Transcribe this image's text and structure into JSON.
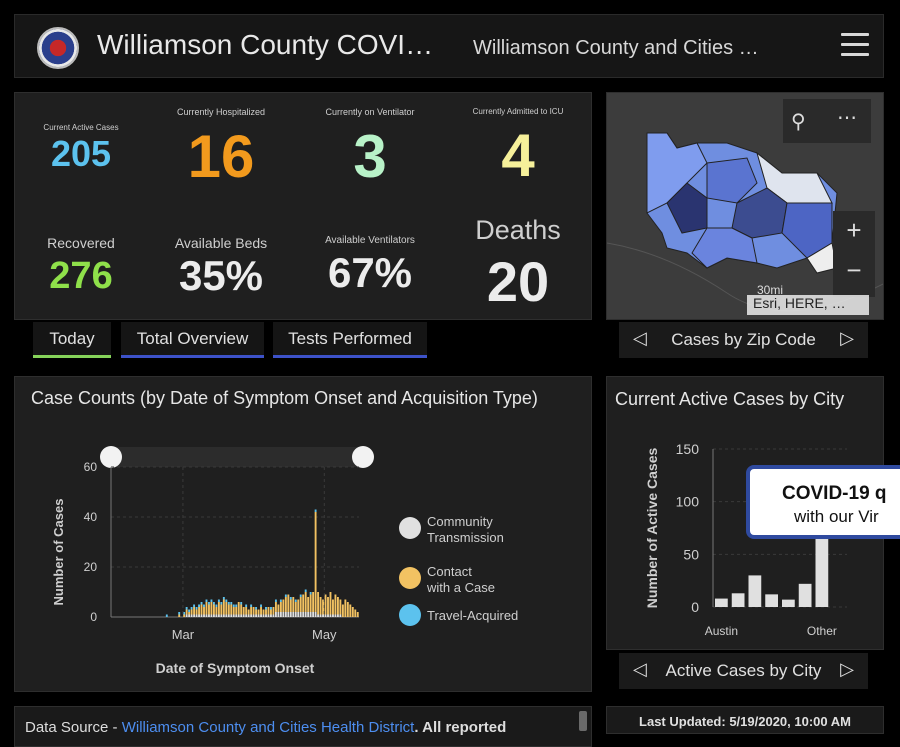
{
  "header": {
    "title": "Williamson County COVI…",
    "subtitle": "Williamson County and Cities …"
  },
  "stats": {
    "active": {
      "label": "Current Active Cases",
      "value": "205",
      "color": "#5cc2ee"
    },
    "hospitalized": {
      "label": "Currently Hospitalized",
      "value": "16",
      "color": "#f29a1d"
    },
    "ventilator": {
      "label": "Currently on Ventilator",
      "value": "3",
      "color": "#b8f2c8"
    },
    "icu": {
      "label": "Currently Admitted to ICU",
      "value": "4",
      "color": "#f6f09a"
    },
    "recovered": {
      "label": "Recovered",
      "value": "276",
      "color": "#8fe04a"
    },
    "beds": {
      "label": "Available Beds",
      "value": "35%",
      "color": "#ececec"
    },
    "ventilators": {
      "label": "Available Ventilators",
      "value": "67%",
      "color": "#ececec"
    },
    "deaths": {
      "label": "Deaths",
      "value": "20",
      "color": "#ececec"
    }
  },
  "tabs": [
    "Today",
    "Total Overview",
    "Tests Performed"
  ],
  "map": {
    "attribution": "Esri, HERE, …",
    "scale_label": "30mi",
    "zoom_in": "+",
    "zoom_out": "−",
    "nav_label": "Cases by Zip Code"
  },
  "cases_chart": {
    "title": "Case Counts (by Date of Symptom Onset and Acquisition Type)"
  },
  "city_chart": {
    "title": "Current Active Cases by City",
    "nav_label": "Active Cases by City"
  },
  "popup": {
    "line1": "COVID-19 q",
    "line2": "with our Vir"
  },
  "footer": {
    "source_prefix": "Data Source - ",
    "source_link": "Williamson County and Cities Health District",
    "source_suffix": ". All reported",
    "updated": "Last Updated: 5/19/2020, 10:00 AM"
  },
  "chart_data": [
    {
      "type": "bar",
      "stacked": true,
      "title": "",
      "xlabel": "Date of Symptom Onset",
      "ylabel": "Number of Cases",
      "ylim": [
        0,
        60
      ],
      "yticks": [
        0,
        20,
        40,
        60
      ],
      "xtick_labels": [
        "Mar",
        "May"
      ],
      "grid": true,
      "legend_position": "right",
      "categories_note": "daily bins, early Feb to mid May 2020",
      "series": [
        {
          "name": "Community Transmission",
          "color": "#e0e0e0",
          "values": [
            0,
            0,
            0,
            0,
            0,
            0,
            0,
            0,
            0,
            0,
            0,
            0,
            0,
            0,
            0,
            0,
            0,
            0,
            0,
            0,
            0,
            0,
            0,
            0,
            0,
            0,
            0,
            0,
            0,
            0,
            1,
            1,
            1,
            1,
            1,
            1,
            1,
            1,
            1,
            1,
            1,
            1,
            1,
            1,
            1,
            1,
            1,
            1,
            1,
            1,
            1,
            1,
            1,
            1,
            1,
            1,
            1,
            1,
            1,
            1,
            1,
            1,
            1,
            1,
            1,
            1,
            2,
            2,
            2,
            2,
            2,
            2,
            2,
            2,
            2,
            2,
            2,
            2,
            2,
            2,
            2,
            2,
            2,
            1,
            1,
            1,
            1,
            1,
            1,
            1,
            1,
            1,
            1,
            0,
            0,
            0,
            0,
            0,
            0,
            0
          ]
        },
        {
          "name": "Contact with a Case",
          "color": "#f2c262",
          "values": [
            0,
            0,
            0,
            0,
            0,
            0,
            0,
            0,
            0,
            0,
            0,
            0,
            0,
            0,
            0,
            0,
            0,
            0,
            0,
            0,
            0,
            0,
            0,
            0,
            0,
            0,
            0,
            1,
            0,
            1,
            2,
            1,
            2,
            3,
            2,
            3,
            4,
            3,
            5,
            4,
            5,
            4,
            3,
            5,
            4,
            6,
            5,
            4,
            4,
            3,
            3,
            5,
            4,
            3,
            3,
            2,
            3,
            3,
            2,
            2,
            3,
            2,
            2,
            3,
            2,
            3,
            4,
            3,
            4,
            5,
            6,
            7,
            5,
            6,
            4,
            5,
            6,
            7,
            8,
            6,
            7,
            8,
            40,
            9,
            7,
            6,
            8,
            7,
            9,
            6,
            8,
            7,
            6,
            5,
            7,
            6,
            5,
            4,
            3,
            2
          ]
        },
        {
          "name": "Travel-Acquired",
          "color": "#5cc2ee",
          "values": [
            0,
            0,
            0,
            0,
            0,
            0,
            0,
            0,
            0,
            0,
            0,
            0,
            0,
            0,
            0,
            0,
            0,
            0,
            0,
            0,
            0,
            0,
            1,
            0,
            0,
            0,
            0,
            1,
            0,
            1,
            1,
            1,
            1,
            1,
            1,
            1,
            1,
            1,
            1,
            1,
            1,
            1,
            1,
            1,
            1,
            1,
            1,
            1,
            1,
            1,
            1,
            0,
            1,
            0,
            1,
            0,
            1,
            0,
            1,
            0,
            1,
            0,
            1,
            0,
            1,
            0,
            1,
            0,
            1,
            0,
            1,
            0,
            1,
            0,
            1,
            0,
            1,
            0,
            1,
            0,
            1,
            0,
            1,
            0,
            0,
            0,
            0,
            0,
            0,
            0,
            0,
            0,
            0,
            0,
            0,
            0,
            0,
            0,
            0,
            0
          ]
        }
      ]
    },
    {
      "type": "bar",
      "title": "",
      "xlabel": "",
      "ylabel": "Number of Active Cases",
      "ylim": [
        0,
        150
      ],
      "yticks": [
        0,
        50,
        100,
        150
      ],
      "categories": [
        "Austin",
        "",
        "",
        "",
        "",
        "",
        "Other",
        ""
      ],
      "visible_tick_labels": [
        "Austin",
        "Other"
      ],
      "values": [
        8,
        13,
        30,
        12,
        7,
        22,
        70,
        0
      ],
      "color": "#e0e0e0",
      "grid": true
    }
  ]
}
